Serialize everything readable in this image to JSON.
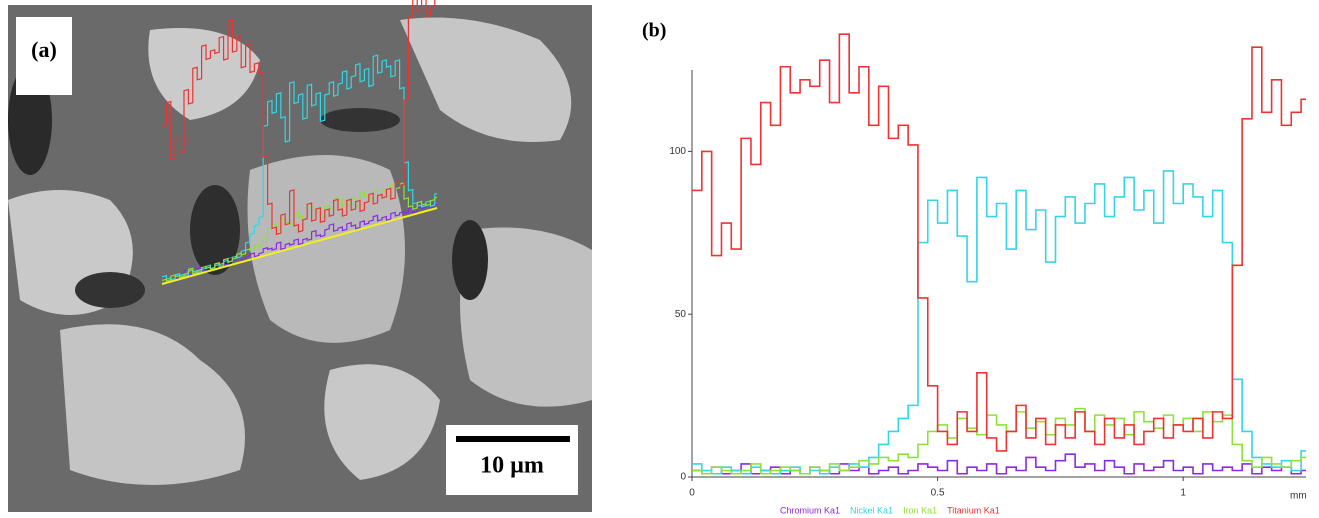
{
  "panel_a": {
    "label": "(a)",
    "scale_bar": "10 µm"
  },
  "chart_data": {
    "type": "line",
    "drawstyle": "steps",
    "panel_label": "(b)",
    "xlabel": "mm",
    "x": [
      0,
      0.02,
      0.04,
      0.06,
      0.08,
      0.1,
      0.12,
      0.14,
      0.16,
      0.18,
      0.2,
      0.22,
      0.24,
      0.26,
      0.28,
      0.3,
      0.32,
      0.34,
      0.36,
      0.38,
      0.4,
      0.42,
      0.44,
      0.46,
      0.48,
      0.5,
      0.52,
      0.54,
      0.56,
      0.58,
      0.6,
      0.62,
      0.64,
      0.66,
      0.68,
      0.7,
      0.72,
      0.74,
      0.76,
      0.78,
      0.8,
      0.82,
      0.84,
      0.86,
      0.88,
      0.9,
      0.92,
      0.94,
      0.96,
      0.98,
      1,
      1.02,
      1.04,
      1.06,
      1.08,
      1.1,
      1.12,
      1.14,
      1.16,
      1.18,
      1.2,
      1.22,
      1.24
    ],
    "series": [
      {
        "name": "Chromium Ka1",
        "color": "#8a2be2",
        "values": [
          2,
          1,
          3,
          1,
          2,
          4,
          1,
          2,
          3,
          1,
          2,
          1,
          3,
          2,
          1,
          4,
          2,
          3,
          1,
          2,
          3,
          1,
          2,
          4,
          3,
          2,
          5,
          1,
          3,
          2,
          4,
          1,
          3,
          2,
          6,
          3,
          2,
          5,
          7,
          3,
          4,
          2,
          5,
          3,
          1,
          4,
          2,
          3,
          5,
          2,
          3,
          1,
          4,
          2,
          3,
          2,
          4,
          1,
          3,
          2,
          3,
          1,
          2
        ]
      },
      {
        "name": "Nickel Ka1",
        "color": "#33d6e6",
        "values": [
          4,
          2,
          1,
          3,
          2,
          1,
          3,
          2,
          1,
          2,
          3,
          1,
          2,
          1,
          3,
          2,
          4,
          3,
          6,
          10,
          14,
          18,
          22,
          72,
          85,
          78,
          88,
          74,
          60,
          92,
          80,
          84,
          70,
          88,
          76,
          82,
          66,
          80,
          86,
          78,
          84,
          90,
          80,
          86,
          92,
          82,
          88,
          78,
          94,
          84,
          90,
          86,
          80,
          88,
          72,
          30,
          14,
          6,
          4,
          3,
          5,
          2,
          8
        ]
      },
      {
        "name": "Iron Ka1",
        "color": "#8fe03a",
        "values": [
          2,
          1,
          3,
          2,
          1,
          2,
          4,
          1,
          2,
          3,
          2,
          1,
          3,
          2,
          4,
          2,
          3,
          5,
          4,
          6,
          5,
          7,
          6,
          10,
          14,
          16,
          12,
          18,
          15,
          13,
          19,
          16,
          14,
          20,
          15,
          17,
          13,
          18,
          16,
          21,
          14,
          19,
          16,
          18,
          13,
          20,
          17,
          15,
          19,
          16,
          18,
          14,
          20,
          17,
          19,
          10,
          5,
          3,
          6,
          4,
          3,
          5,
          6
        ]
      },
      {
        "name": "Titanium Ka1",
        "color": "#ee3333",
        "values": [
          88,
          100,
          68,
          78,
          70,
          104,
          96,
          115,
          108,
          126,
          118,
          122,
          120,
          128,
          115,
          136,
          118,
          126,
          108,
          120,
          104,
          108,
          102,
          55,
          28,
          14,
          10,
          20,
          14,
          32,
          12,
          8,
          14,
          22,
          12,
          18,
          10,
          16,
          12,
          20,
          14,
          10,
          18,
          12,
          16,
          10,
          14,
          18,
          12,
          16,
          14,
          18,
          12,
          20,
          18,
          65,
          110,
          132,
          112,
          122,
          108,
          112,
          116
        ]
      }
    ],
    "xlim": [
      0,
      1.25
    ],
    "ylim": [
      0,
      125
    ],
    "xticks": [
      0,
      0.5,
      1
    ],
    "yticks": [
      0,
      50,
      100
    ]
  }
}
